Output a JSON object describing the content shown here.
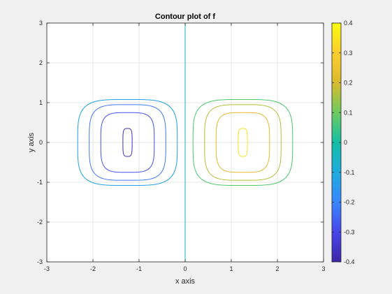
{
  "chart_data": {
    "type": "contour",
    "title": "Contour plot of f",
    "xlabel": "x axis",
    "ylabel": "y axis",
    "xlim": [
      -3,
      3
    ],
    "ylim": [
      -3,
      3
    ],
    "xticks": [
      -3,
      -2,
      -1,
      0,
      1,
      2,
      3
    ],
    "yticks": [
      -3,
      -2,
      -1,
      0,
      1,
      2,
      3
    ],
    "grid": true,
    "colormap": "parula",
    "colorbar": {
      "range": [
        -0.4,
        0.4
      ],
      "ticks": [
        -0.4,
        -0.3,
        -0.2,
        -0.1,
        0,
        0.1,
        0.2,
        0.3,
        0.4
      ],
      "tick_labels": [
        "-0.4",
        "-0.3",
        "-0.2",
        "-0.1",
        "0",
        "0.1",
        "0.2",
        "0.3",
        "0.4"
      ],
      "colors": [
        "#3e26a8",
        "#4746eb",
        "#3987fe",
        "#1eacdf",
        "#13bea4",
        "#6ecb5f",
        "#d8ba2d",
        "#fcce2e",
        "#f9fb0e"
      ]
    },
    "levels": [
      {
        "value": -0.35,
        "color": "#3b2fc9",
        "center": [
          -1.25,
          0
        ],
        "half_width": 0.1,
        "half_height": 0.35
      },
      {
        "value": -0.25,
        "color": "#4150ee",
        "center": [
          -1.25,
          0
        ],
        "half_width": 0.58,
        "half_height": 0.75
      },
      {
        "value": -0.15,
        "color": "#3d78f8",
        "center": [
          -1.25,
          0
        ],
        "half_width": 0.83,
        "half_height": 0.95
      },
      {
        "value": -0.05,
        "color": "#1ea0e4",
        "center": [
          -1.25,
          0
        ],
        "half_width": 1.08,
        "half_height": 1.08
      },
      {
        "value": 0,
        "color": "#12b2c2",
        "vertical_line_x": 0
      },
      {
        "value": 0.05,
        "color": "#4cc76e",
        "center": [
          1.25,
          0
        ],
        "half_width": 1.08,
        "half_height": 1.08
      },
      {
        "value": 0.15,
        "color": "#b8bd3a",
        "center": [
          1.25,
          0
        ],
        "half_width": 0.83,
        "half_height": 0.95
      },
      {
        "value": 0.25,
        "color": "#e2b92c",
        "center": [
          1.25,
          0
        ],
        "half_width": 0.58,
        "half_height": 0.75
      },
      {
        "value": 0.35,
        "color": "#f5e41f",
        "center": [
          1.25,
          0
        ],
        "half_width": 0.1,
        "half_height": 0.35
      }
    ]
  }
}
